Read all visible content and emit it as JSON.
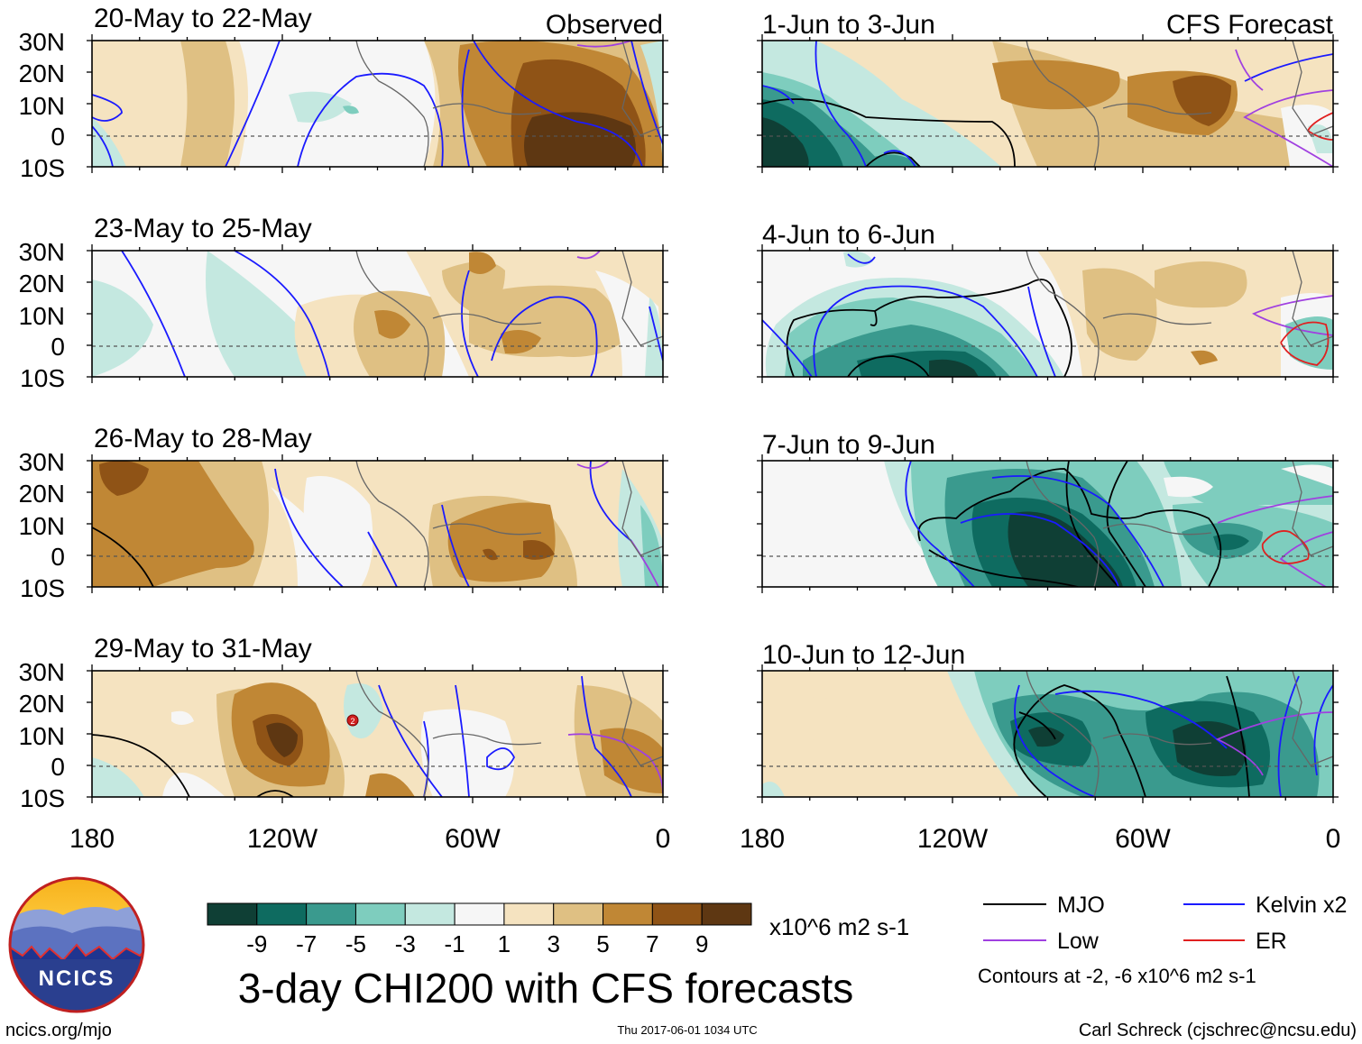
{
  "observed_label": "Observed",
  "forecast_label": "CFS Forecast",
  "panels_left": [
    {
      "title": "20-May to 22-May"
    },
    {
      "title": "23-May to 25-May"
    },
    {
      "title": "26-May to 28-May"
    },
    {
      "title": "29-May to 31-May"
    }
  ],
  "panels_right": [
    {
      "title": "1-Jun to 3-Jun"
    },
    {
      "title": "4-Jun to 6-Jun"
    },
    {
      "title": "7-Jun to 9-Jun"
    },
    {
      "title": "10-Jun to 12-Jun"
    }
  ],
  "lat_labels": [
    "30N",
    "20N",
    "10N",
    "0",
    "10S"
  ],
  "lon_labels": [
    "180",
    "120W",
    "60W",
    "0"
  ],
  "colorbar": {
    "colors": [
      "#0f3f35",
      "#0e6b60",
      "#3a9a8e",
      "#7ecdbe",
      "#c4e8e0",
      "#f6f6f6",
      "#f5e3c0",
      "#dfc083",
      "#c08735",
      "#8f5316",
      "#5e3712"
    ],
    "tick_labels": [
      "-9",
      "-7",
      "-5",
      "-3",
      "-1",
      "1",
      "3",
      "5",
      "7",
      "9"
    ],
    "units": "x10^6 m2 s-1"
  },
  "main_title": "3-day CHI200 with CFS forecasts",
  "legend": {
    "items": [
      {
        "label": "MJO",
        "color": "#000000"
      },
      {
        "label": "Kelvin x2",
        "color": "#1a1aff"
      },
      {
        "label": "Low",
        "color": "#a040e0"
      },
      {
        "label": "ER",
        "color": "#e02020"
      }
    ],
    "note": "Contours at -2, -6 x10^6 m2 s-1"
  },
  "logo_text": "NCICS",
  "footer": {
    "left": "ncics.org/mjo",
    "center": "Thu 2017-06-01 1034 UTC",
    "right": "Carl Schreck (cjschrec@ncsu.edu)"
  },
  "storm_marker": "2"
}
